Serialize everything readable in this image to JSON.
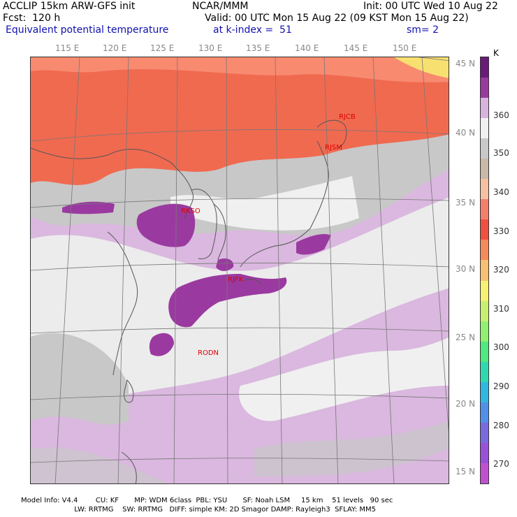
{
  "header": {
    "model_title": "ACCLIP 15km ARW-GFS init",
    "forecast": "Fcst:  120 h",
    "field_name": "Equivalent potential temperature",
    "org": "NCAR/MMM",
    "valid": "Valid: 00 UTC Mon 15 Aug 22 (09 KST Mon 15 Aug 22)",
    "level": "at k-index =  51",
    "init": "Init: 00 UTC Wed 10 Aug 22",
    "smooth": "sm= 2"
  },
  "axes": {
    "lon_labels": [
      "115 E",
      "120 E",
      "125 E",
      "130 E",
      "135 E",
      "140 E",
      "145 E",
      "150 E"
    ],
    "lat_labels": [
      "45 N",
      "40 N",
      "35 N",
      "30 N",
      "25 N",
      "20 N",
      "15 N"
    ]
  },
  "stations": [
    "RJCB",
    "RJSM",
    "RKSO",
    "RJFK",
    "RODN"
  ],
  "colorbar": {
    "unit": "K",
    "labels": [
      "360",
      "350",
      "340",
      "330",
      "320",
      "310",
      "300",
      "290",
      "280",
      "270"
    ],
    "colors": [
      "#6a1a78",
      "#9a3aa0",
      "#d9b3dd",
      "#f0f0f0",
      "#c8c8c8",
      "#c8b8a8",
      "#f5c0a0",
      "#f4806a",
      "#f05040",
      "#f58a5a",
      "#f8c070",
      "#f8f070",
      "#c8f070",
      "#90f070",
      "#50e880",
      "#30d8b0",
      "#30b8e0",
      "#5090e8",
      "#7a6ae0",
      "#9a50d8",
      "#c050d0"
    ]
  },
  "footer": {
    "line1": "Model Info: V4.4        CU: KF       MP: WDM 6class  PBL: YSU       SF: Noah LSM     15 km    51 levels   90 sec",
    "line2": "                        LW: RRTMG    SW: RRTMG   DIFF: simple KM: 2D Smagor DAMP: Rayleigh3  SFLAY: MM5"
  },
  "map_colors": {
    "warm": "#f06a50",
    "warm2": "#f88a70",
    "pale": "#f0e0d0",
    "gray": "#c8c8c8",
    "white": "#f0f0f0",
    "lilac": "#dab8df",
    "purple": "#9a3aa0",
    "land_line": "#555555",
    "grid": "#777777"
  }
}
